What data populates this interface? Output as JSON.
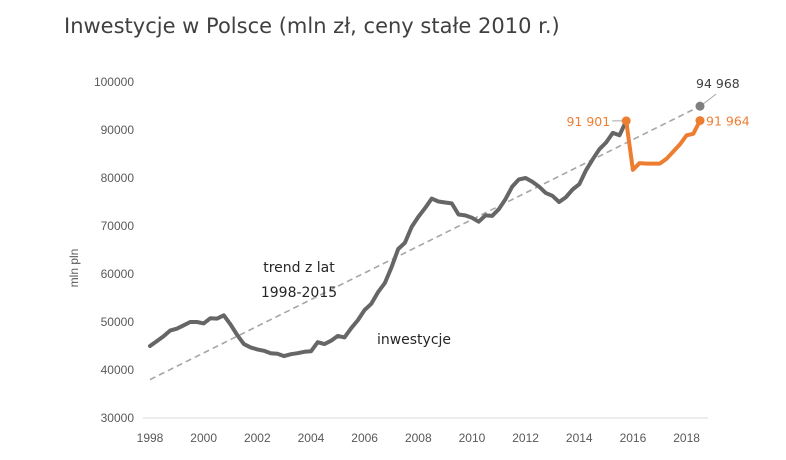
{
  "chart_data": {
    "type": "line",
    "title": "Inwestycje w Polsce (mln zł, ceny stałe 2010 r.)",
    "ylabel": "mln pln",
    "xlabel": "",
    "xlim": [
      1998,
      2018.9
    ],
    "ylim": [
      30000,
      100000
    ],
    "x_ticks": [
      "1998",
      "2000",
      "2002",
      "2004",
      "2006",
      "2008",
      "2010",
      "2012",
      "2014",
      "2016",
      "2018"
    ],
    "y_ticks": [
      "30000",
      "40000",
      "50000",
      "60000",
      "70000",
      "80000",
      "90000",
      "100000"
    ],
    "grid": false,
    "colors": {
      "investment": "#666666",
      "forecast": "#ed7d31",
      "trend": "#a6a6a6",
      "trend_point": "#7f7f7f"
    },
    "series": [
      {
        "key": "investment",
        "x": [
          1998.0,
          1998.25,
          1998.5,
          1998.75,
          1999.0,
          1999.25,
          1999.5,
          1999.75,
          2000.0,
          2000.25,
          2000.5,
          2000.75,
          2001.0,
          2001.25,
          2001.5,
          2001.75,
          2002.0,
          2002.25,
          2002.5,
          2002.75,
          2003.0,
          2003.25,
          2003.5,
          2003.75,
          2004.0,
          2004.25,
          2004.5,
          2004.75,
          2005.0,
          2005.25,
          2005.5,
          2005.75,
          2006.0,
          2006.25,
          2006.5,
          2006.75,
          2007.0,
          2007.25,
          2007.5,
          2007.75,
          2008.0,
          2008.25,
          2008.5,
          2008.75,
          2009.0,
          2009.25,
          2009.5,
          2009.75,
          2010.0,
          2010.25,
          2010.5,
          2010.75,
          2011.0,
          2011.25,
          2011.5,
          2011.75,
          2012.0,
          2012.25,
          2012.5,
          2012.75,
          2013.0,
          2013.25,
          2013.5,
          2013.75,
          2014.0,
          2014.25,
          2014.5,
          2014.75,
          2015.0,
          2015.25,
          2015.5,
          2015.75
        ],
        "values": [
          45000,
          46000,
          47000,
          48200,
          48600,
          49300,
          50000,
          50000,
          49700,
          50800,
          50700,
          51400,
          49500,
          47300,
          45400,
          44700,
          44300,
          44000,
          43500,
          43400,
          42900,
          43300,
          43500,
          43800,
          43900,
          45800,
          45400,
          46100,
          47100,
          46800,
          48700,
          50400,
          52500,
          53800,
          56200,
          58100,
          61400,
          65200,
          66500,
          69800,
          71900,
          73700,
          75700,
          75100,
          74900,
          74700,
          72400,
          72200,
          71700,
          70900,
          72200,
          72100,
          73500,
          75600,
          78200,
          79700,
          80000,
          79200,
          78200,
          76900,
          76300,
          75000,
          76000,
          77600,
          78700,
          81600,
          83900,
          86000,
          87400,
          89400,
          88900,
          91901
        ]
      },
      {
        "key": "forecast",
        "x": [
          2015.75,
          2016.0,
          2016.25,
          2016.5,
          2016.75,
          2017.0,
          2017.25,
          2017.5,
          2017.75,
          2018.0,
          2018.25,
          2018.5
        ],
        "values": [
          91901,
          81700,
          83100,
          83000,
          83000,
          83000,
          84000,
          85500,
          87000,
          88900,
          89200,
          91964
        ]
      },
      {
        "key": "trend",
        "x": [
          1998.0,
          2018.5
        ],
        "values": [
          38000,
          94968
        ]
      }
    ],
    "annotations": {
      "trend_label_line1": "trend z lat",
      "trend_label_line2": "1998-2015",
      "investment_label": "inwestycje",
      "label_start": "91 901",
      "label_end": "91 964",
      "label_trend": "94 968"
    }
  }
}
